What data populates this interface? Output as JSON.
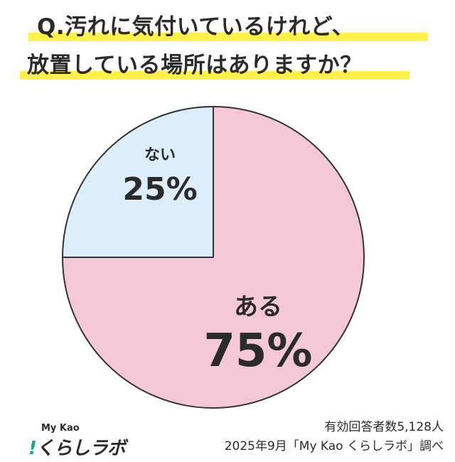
{
  "title": {
    "line1": "Q.汚れに気付いているけれど、",
    "line2": "放置している場所はありますか？",
    "highlight_color": "#fff04a"
  },
  "chart_data": {
    "type": "pie",
    "start": "12 o'clock",
    "direction": "counterclockwise",
    "slices": [
      {
        "label": "ない",
        "value": 25,
        "value_label": "25%",
        "color": "#dceefb"
      },
      {
        "label": "ある",
        "value": 75,
        "value_label": "75%",
        "color": "#f5c8d8"
      }
    ],
    "stroke_color": "#333333"
  },
  "brand": {
    "top": "My Kao",
    "main_prefix": "!",
    "main": "くらしラボ",
    "accent_color": "#1aa97a"
  },
  "source": {
    "line1": "有効回答者数5,128人",
    "line2": "2025年9月「My Kao くらしラボ」調べ"
  }
}
